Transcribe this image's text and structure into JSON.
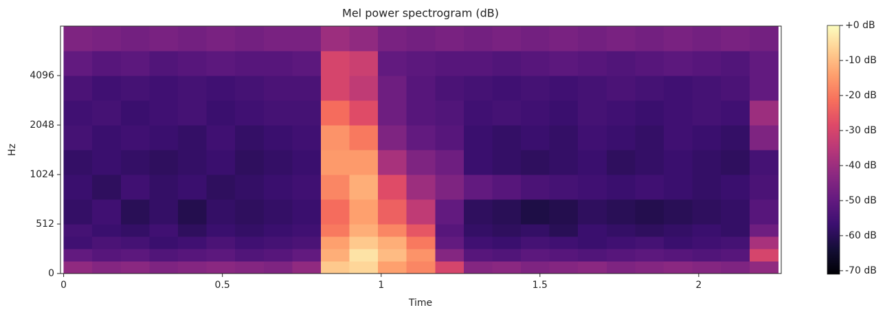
{
  "chart_data": {
    "type": "heatmap",
    "title": "Mel power spectrogram (dB)",
    "x_label": "Time",
    "y_label": "Hz",
    "xlim": [
      -0.01,
      2.26
    ],
    "xticks": [
      0,
      0.5,
      1,
      1.5,
      2
    ],
    "ylim": [
      0,
      8192
    ],
    "yticks": [
      0,
      512,
      1024,
      2048,
      4096
    ],
    "yscale": "symlog",
    "linthresh": 512,
    "base": 2,
    "colormap": "magma",
    "zlim": [
      -71,
      0
    ],
    "colorbar_ticks": [
      {
        "value": 0,
        "label": "+0 dB"
      },
      {
        "value": -10,
        "label": "-10 dB"
      },
      {
        "value": -20,
        "label": "-20 dB"
      },
      {
        "value": -30,
        "label": "-30 dB"
      },
      {
        "value": -40,
        "label": "-40 dB"
      },
      {
        "value": -50,
        "label": "-50 dB"
      },
      {
        "value": -60,
        "label": "-60 dB"
      },
      {
        "value": -70,
        "label": "-70 dB"
      }
    ],
    "xbins": [
      0,
      0.09,
      0.18,
      0.27,
      0.36,
      0.45,
      0.54,
      0.63,
      0.72,
      0.81,
      0.9,
      0.99,
      1.08,
      1.17,
      1.26,
      1.35,
      1.44,
      1.53,
      1.62,
      1.71,
      1.8,
      1.89,
      1.98,
      2.07,
      2.16,
      2.25
    ],
    "ybins": [
      0,
      128,
      256,
      384,
      512,
      724,
      1024,
      1448,
      2048,
      2896,
      4096,
      5793,
      8192
    ],
    "z": [
      [
        -42,
        -50,
        -56,
        -55,
        -58,
        -57,
        -58,
        -55,
        -56,
        -54,
        -50,
        -45
      ],
      [
        -44,
        -52,
        -54,
        -57,
        -56,
        -59,
        -57,
        -57,
        -55,
        -56,
        -52,
        -46
      ],
      [
        -43,
        -51,
        -55,
        -58,
        -60,
        -56,
        -58,
        -56,
        -57,
        -55,
        -51,
        -47
      ],
      [
        -45,
        -53,
        -57,
        -56,
        -58,
        -58,
        -59,
        -57,
        -56,
        -56,
        -53,
        -46
      ],
      [
        -44,
        -52,
        -56,
        -59,
        -61,
        -57,
        -58,
        -58,
        -55,
        -55,
        -52,
        -47
      ],
      [
        -43,
        -51,
        -54,
        -57,
        -58,
        -59,
        -57,
        -56,
        -57,
        -56,
        -51,
        -46
      ],
      [
        -44,
        -53,
        -56,
        -58,
        -59,
        -58,
        -59,
        -58,
        -56,
        -55,
        -52,
        -47
      ],
      [
        -45,
        -52,
        -55,
        -57,
        -58,
        -57,
        -58,
        -57,
        -55,
        -54,
        -52,
        -46
      ],
      [
        -42,
        -50,
        -54,
        -56,
        -57,
        -56,
        -57,
        -56,
        -55,
        -54,
        -51,
        -46
      ],
      [
        -8,
        -12,
        -14,
        -20,
        -22,
        -18,
        -15,
        -16,
        -22,
        -30,
        -30,
        -40
      ],
      [
        -6,
        -4,
        -8,
        -12,
        -14,
        -12,
        -15,
        -20,
        -28,
        -34,
        -32,
        -42
      ],
      [
        -14,
        -10,
        -12,
        -18,
        -24,
        -28,
        -38,
        -45,
        -48,
        -48,
        -50,
        -46
      ],
      [
        -18,
        -16,
        -20,
        -26,
        -34,
        -40,
        -45,
        -50,
        -52,
        -52,
        -51,
        -47
      ],
      [
        -30,
        -44,
        -50,
        -52,
        -50,
        -45,
        -48,
        -52,
        -53,
        -54,
        -52,
        -46
      ],
      [
        -44,
        -52,
        -56,
        -58,
        -59,
        -50,
        -57,
        -57,
        -56,
        -55,
        -52,
        -47
      ],
      [
        -43,
        -53,
        -57,
        -59,
        -60,
        -52,
        -58,
        -58,
        -55,
        -56,
        -53,
        -46
      ],
      [
        -45,
        -51,
        -55,
        -58,
        -62,
        -54,
        -59,
        -57,
        -56,
        -55,
        -52,
        -47
      ],
      [
        -44,
        -52,
        -56,
        -60,
        -61,
        -55,
        -58,
        -58,
        -57,
        -56,
        -51,
        -46
      ],
      [
        -43,
        -53,
        -57,
        -57,
        -59,
        -56,
        -57,
        -56,
        -55,
        -55,
        -52,
        -47
      ],
      [
        -45,
        -52,
        -56,
        -58,
        -60,
        -57,
        -59,
        -57,
        -56,
        -54,
        -53,
        -46
      ],
      [
        -44,
        -51,
        -55,
        -59,
        -61,
        -56,
        -58,
        -58,
        -57,
        -55,
        -52,
        -47
      ],
      [
        -43,
        -52,
        -57,
        -58,
        -60,
        -57,
        -57,
        -56,
        -56,
        -56,
        -51,
        -46
      ],
      [
        -44,
        -53,
        -56,
        -57,
        -59,
        -58,
        -58,
        -57,
        -55,
        -55,
        -52,
        -47
      ],
      [
        -45,
        -52,
        -55,
        -58,
        -58,
        -57,
        -59,
        -58,
        -56,
        -54,
        -53,
        -46
      ],
      [
        -42,
        -30,
        -38,
        -48,
        -52,
        -54,
        -55,
        -45,
        -40,
        -50,
        -50,
        -47
      ]
    ]
  }
}
